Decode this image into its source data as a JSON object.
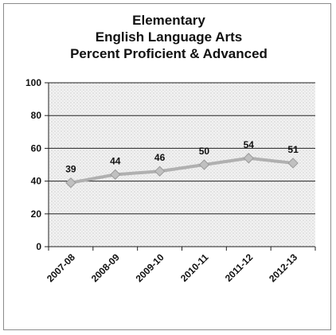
{
  "chart_data": {
    "type": "line",
    "title_lines": [
      "Elementary",
      "English Language Arts",
      "Percent Proficient & Advanced"
    ],
    "categories": [
      "2007-08",
      "2008-09",
      "2009-10",
      "2010-11",
      "2011-12",
      "2012-13"
    ],
    "series": [
      {
        "values": [
          39,
          44,
          46,
          50,
          54,
          51
        ]
      }
    ],
    "ylim": [
      0,
      100
    ],
    "yticks": [
      0,
      20,
      40,
      60,
      80,
      100
    ],
    "grid": true,
    "xlabel": "",
    "ylabel": "",
    "colors": {
      "line": "#b0b0b0",
      "marker": "#c0c0c0",
      "grid": "#222222",
      "plot_bg": "#eeeeee"
    }
  }
}
